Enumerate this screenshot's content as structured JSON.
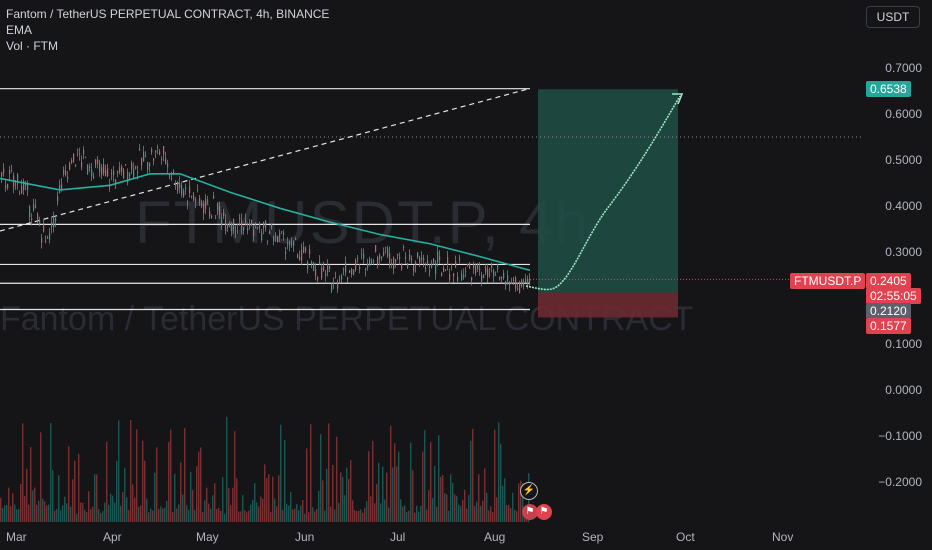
{
  "header": {
    "symbol_line": "Fantom / TetherUS PERPETUAL CONTRACT, 4h, BINANCE",
    "indicator_1": "EMA",
    "indicator_2": "Vol · FTM",
    "currency": "USDT"
  },
  "watermark": {
    "symbol": "FTMUSDT.P, 4h",
    "description": "Fantom / TetherUS PERPETUAL CONTRACT"
  },
  "price_tags": {
    "target": "0.6538",
    "symbol_name": "FTMUSDT.P",
    "current": "0.2405",
    "countdown": "02:55:05",
    "level": "0.2120",
    "stop": "0.1577"
  },
  "colors": {
    "background": "#151518",
    "up": "#26a69a",
    "down": "#ef5350",
    "ema": "#26b0a0",
    "profit_zone": "#1f4f47",
    "loss_zone": "#6b2a31",
    "projection": "#9ee6c3"
  },
  "chart_data": {
    "type": "candlestick",
    "y_axis_ticks": [
      "0.7000",
      "0.6000",
      "0.5000",
      "0.4000",
      "0.3000",
      "0.1000",
      "0.0000",
      "−0.1000",
      "−0.2000"
    ],
    "x_axis_ticks": [
      "Mar",
      "Apr",
      "May",
      "Jun",
      "Jul",
      "Aug",
      "Sep",
      "Oct",
      "Nov"
    ],
    "ylim": [
      -0.23,
      0.75
    ],
    "horizontal_levels": [
      0.655,
      0.36,
      0.273,
      0.232,
      0.175
    ],
    "dotted_level": 0.55,
    "ema_approx": [
      [
        0,
        0.46
      ],
      [
        60,
        0.435
      ],
      [
        110,
        0.445
      ],
      [
        150,
        0.47
      ],
      [
        180,
        0.47
      ],
      [
        230,
        0.43
      ],
      [
        280,
        0.395
      ],
      [
        330,
        0.365
      ],
      [
        380,
        0.338
      ],
      [
        430,
        0.318
      ],
      [
        480,
        0.29
      ],
      [
        530,
        0.26
      ]
    ],
    "close_approx": [
      [
        0,
        0.46
      ],
      [
        20,
        0.45
      ],
      [
        48,
        0.315
      ],
      [
        60,
        0.44
      ],
      [
        75,
        0.51
      ],
      [
        110,
        0.46
      ],
      [
        160,
        0.52
      ],
      [
        180,
        0.44
      ],
      [
        230,
        0.37
      ],
      [
        280,
        0.33
      ],
      [
        330,
        0.24
      ],
      [
        380,
        0.3
      ],
      [
        420,
        0.275
      ],
      [
        480,
        0.255
      ],
      [
        530,
        0.22
      ]
    ],
    "long_position": {
      "entry": 0.212,
      "target": 0.6538,
      "stop": 0.1577
    }
  },
  "events": {
    "flash_icon": "lightning-icon",
    "flags": [
      "us-flag-icon",
      "us-flag-icon"
    ]
  }
}
